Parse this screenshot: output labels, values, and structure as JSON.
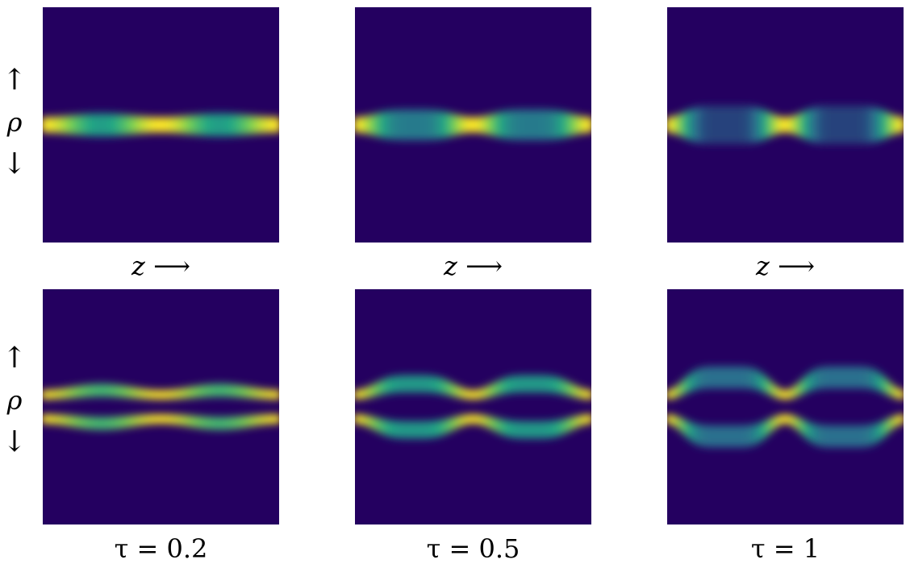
{
  "chart_data": {
    "type": "heatmap",
    "colormap": [
      "#240060",
      "#2a6f8e",
      "#22a884",
      "#7ad151",
      "#fde725"
    ],
    "xlabel": "z ⟶",
    "ylabel": {
      "up": "↑",
      "symbol": "ρ",
      "down": "↓"
    },
    "columns": [
      {
        "tau_label": "τ = 0.2",
        "tau": 0.2
      },
      {
        "tau_label": "τ = 0.5",
        "tau": 0.5
      },
      {
        "tau_label": "τ = 1",
        "tau": 1
      }
    ],
    "rows": [
      {
        "row": "top",
        "pattern": "single-beam"
      },
      {
        "row": "bottom",
        "pattern": "double-beam"
      }
    ]
  }
}
